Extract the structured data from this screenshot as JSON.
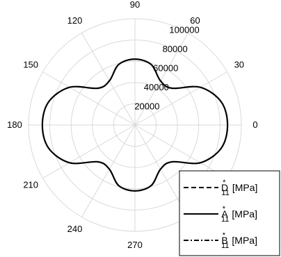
{
  "chart_data": {
    "type": "line",
    "subtype": "polar",
    "angular_unit": "degrees",
    "angular_ticks": [
      0,
      30,
      60,
      90,
      120,
      150,
      180,
      210,
      240,
      270
    ],
    "angular_tick_labels": [
      "0",
      "30",
      "60",
      "90",
      "120",
      "150",
      "180",
      "210",
      "240",
      "270"
    ],
    "radial_ticks": [
      20000,
      40000,
      60000,
      80000,
      100000
    ],
    "radial_tick_labels": [
      "20000",
      "40000",
      "60000",
      "80000",
      "100000"
    ],
    "rlim": [
      0,
      100000
    ],
    "grid": true,
    "legend_position": "bottom-right",
    "series": [
      {
        "name": "D",
        "label_subscript": "11",
        "label_superscript": "*",
        "label_unit": "[MPa]",
        "line_style": "dashed",
        "color": "#000000",
        "theta": [],
        "r": []
      },
      {
        "name": "A",
        "label_subscript": "11",
        "label_superscript": "*",
        "label_unit": "[MPa]",
        "line_style": "solid",
        "color": "#000000",
        "theta": [
          0,
          15,
          30,
          45,
          60,
          75,
          90,
          105,
          120,
          135,
          150,
          165,
          180,
          195,
          210,
          225,
          240,
          255,
          270,
          285,
          300,
          315,
          330,
          345
        ],
        "r": [
          87000,
          84000,
          71000,
          49000,
          48000,
          59000,
          62000,
          59000,
          48000,
          49000,
          71000,
          84000,
          87000,
          84000,
          71000,
          49000,
          48000,
          59000,
          62000,
          59000,
          48000,
          49000,
          71000,
          84000
        ]
      },
      {
        "name": "B",
        "label_subscript": "11",
        "label_superscript": "*",
        "label_unit": "[MPa]",
        "line_style": "dashdot",
        "color": "#000000",
        "theta": [],
        "r": []
      }
    ]
  }
}
